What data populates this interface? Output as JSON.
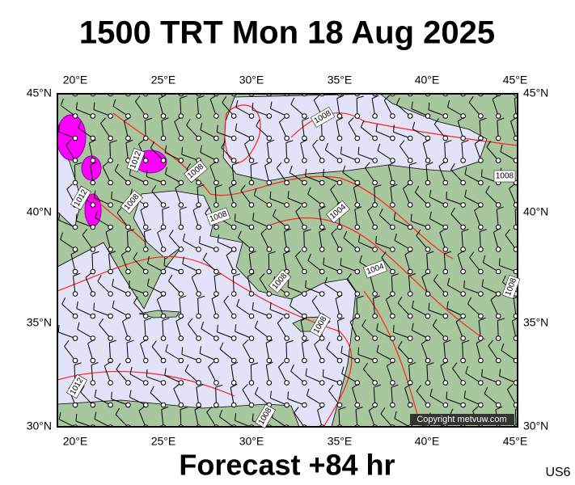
{
  "header": {
    "title": "1500 TRT Mon 18 Aug 2025"
  },
  "map": {
    "lon_labels": [
      "20°E",
      "25°E",
      "30°E",
      "35°E",
      "40°E",
      "45°E"
    ],
    "lat_labels": [
      "45°N",
      "40°N",
      "35°N",
      "30°N"
    ],
    "contour_labels": [
      "1008",
      "1012",
      "1008",
      "1012",
      "1008",
      "1008",
      "1004",
      "1008",
      "1004",
      "1008",
      "1008",
      "1008",
      "1012",
      "1008"
    ],
    "copyright": "Copyright metvuw.com"
  },
  "footer": {
    "forecast": "Forecast +84 hr",
    "code": "US6"
  }
}
